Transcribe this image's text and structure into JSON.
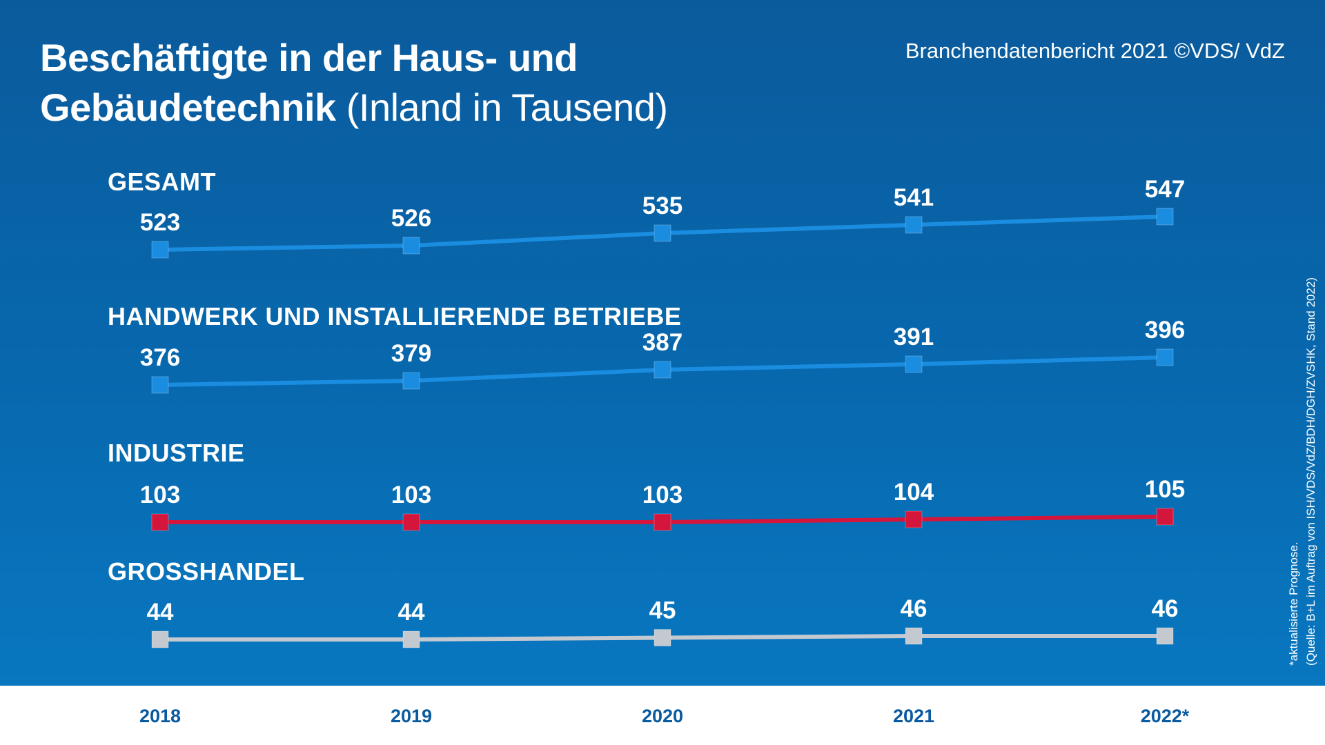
{
  "title": {
    "bold_line1": "Beschäftigte in der Haus- und",
    "bold_line2": "Gebäudetechnik",
    "light": "(Inland in Tausend)"
  },
  "source_top": "Branchendatenbericht 2021 ©VDS/ VdZ",
  "footnote": "*aktualisierte Prognose.",
  "source_note": "(Quelle: B+L im Auftrag von ISH/VDS/VdZ/BDH/DGH/ZVSHK, Stand 2022)",
  "colors": {
    "background_top": "#0a5b9c",
    "background_bottom": "#0877c0",
    "blue_line": "#1a8de0",
    "red_line": "#d4163c",
    "gray_line": "#c4c9d0",
    "year_text": "#0a5aa0"
  },
  "chart_data": {
    "type": "line",
    "x": [
      "2018",
      "2019",
      "2020",
      "2021",
      "2022*"
    ],
    "series": [
      {
        "name": "GESAMT",
        "values": [
          523,
          526,
          535,
          541,
          547
        ],
        "color": "#1a8de0"
      },
      {
        "name": "HANDWERK UND INSTALLIERENDE BETRIEBE",
        "values": [
          376,
          379,
          387,
          391,
          396
        ],
        "color": "#1a8de0"
      },
      {
        "name": "INDUSTRIE",
        "values": [
          103,
          103,
          103,
          104,
          105
        ],
        "color": "#d4163c"
      },
      {
        "name": "GROSSHANDEL",
        "values": [
          44,
          44,
          45,
          46,
          46
        ],
        "color": "#c4c9d0"
      }
    ]
  }
}
